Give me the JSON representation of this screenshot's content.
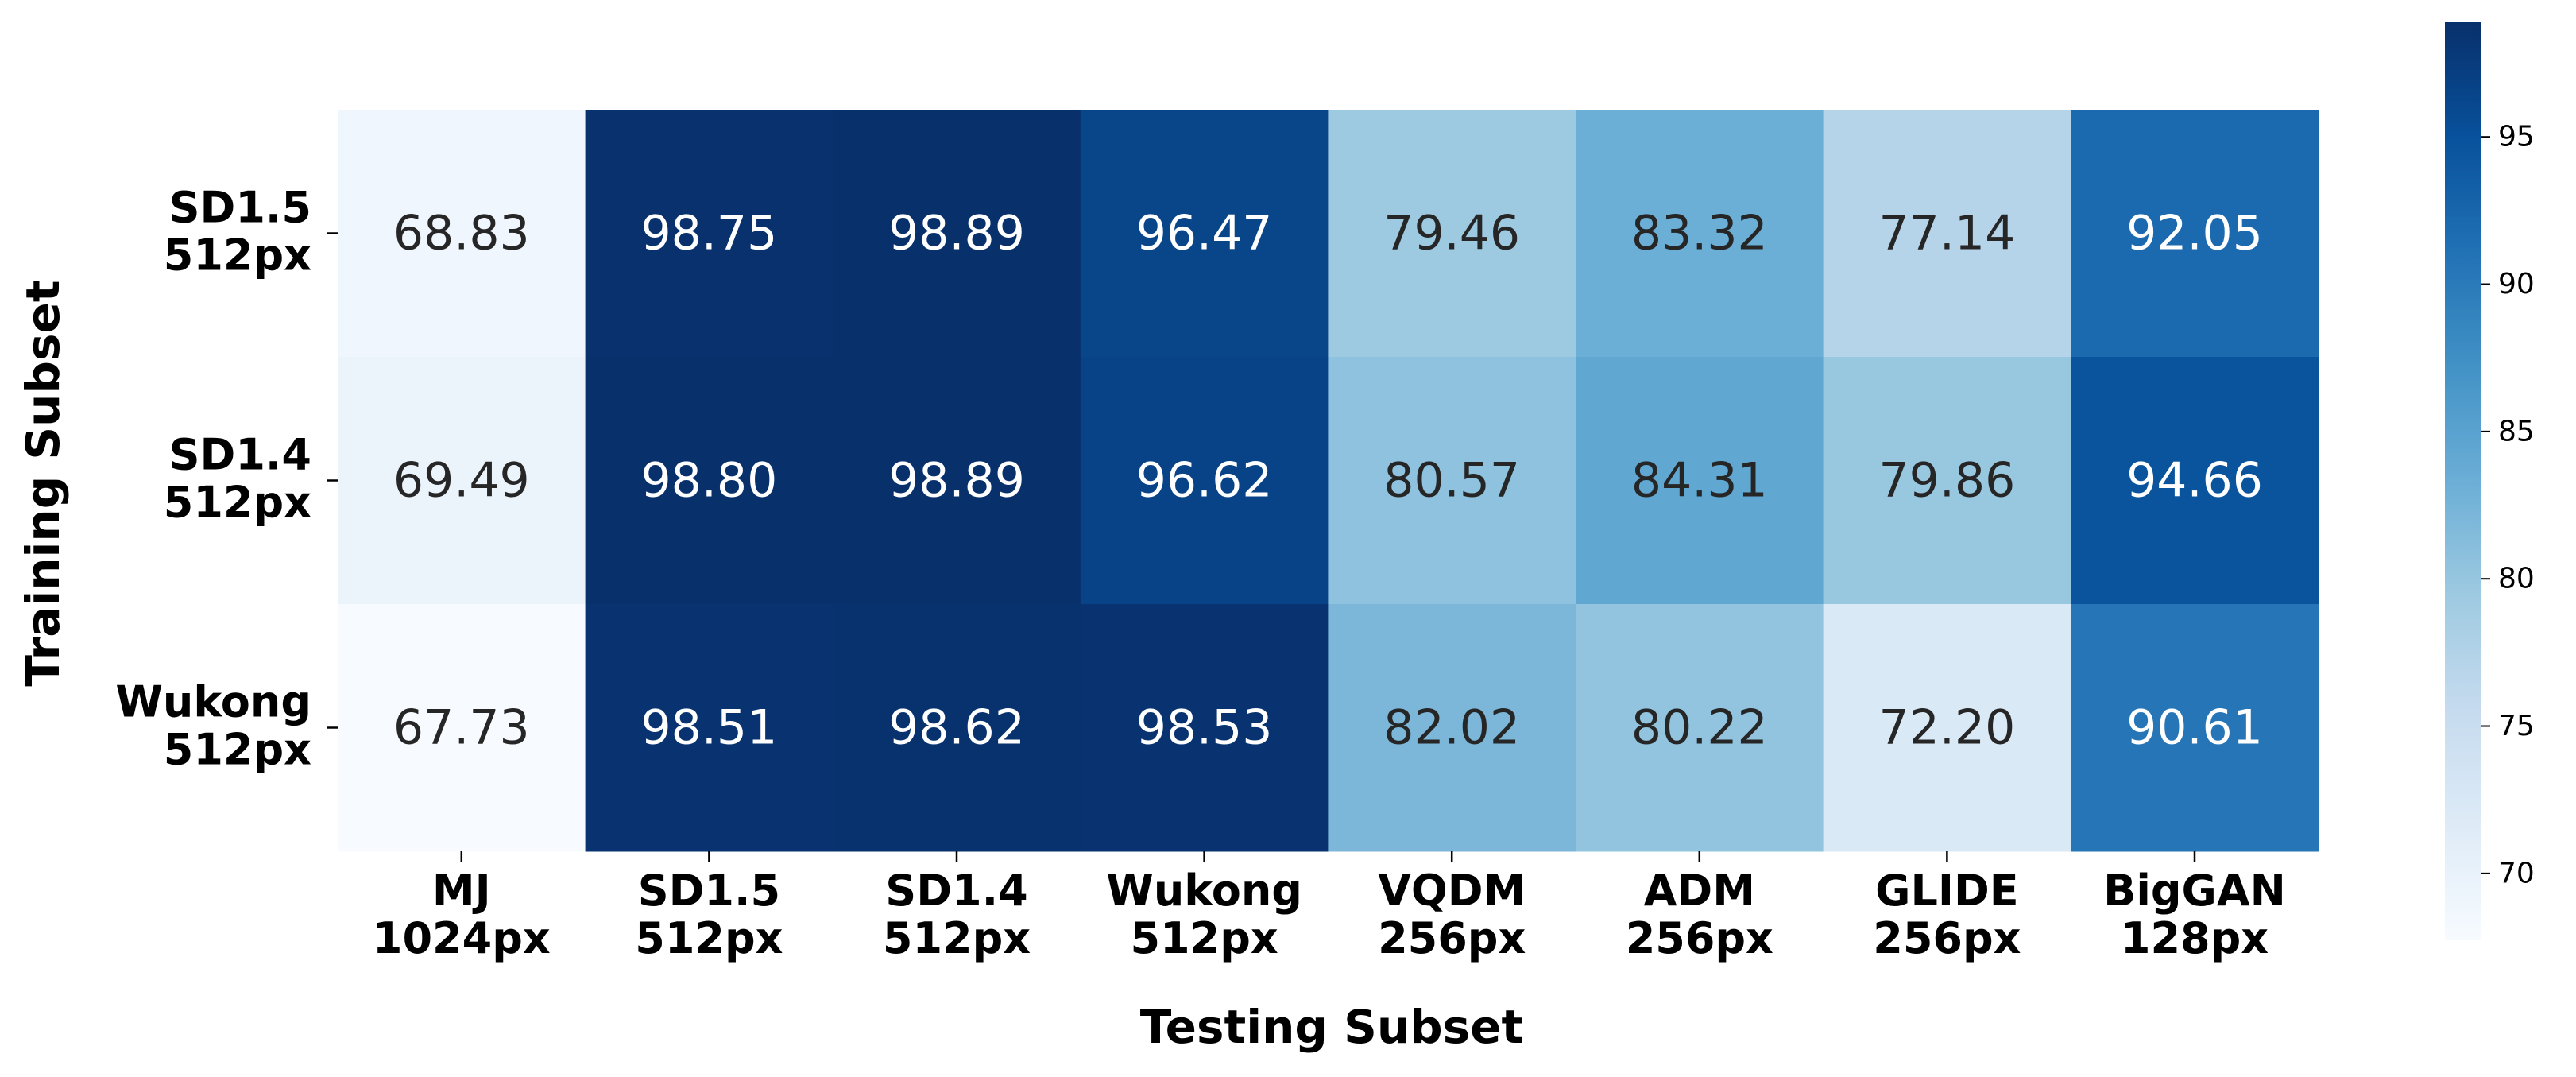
{
  "chart_data": {
    "type": "heatmap",
    "title": "",
    "xlabel": "Testing Subset",
    "ylabel": "Training Subset",
    "x_categories": [
      [
        "MJ",
        "1024px"
      ],
      [
        "SD1.5",
        "512px"
      ],
      [
        "SD1.4",
        "512px"
      ],
      [
        "Wukong",
        "512px"
      ],
      [
        "VQDM",
        "256px"
      ],
      [
        "ADM",
        "256px"
      ],
      [
        "GLIDE",
        "256px"
      ],
      [
        "BigGAN",
        "128px"
      ]
    ],
    "y_categories": [
      [
        "SD1.5",
        "512px"
      ],
      [
        "SD1.4",
        "512px"
      ],
      [
        "Wukong",
        "512px"
      ]
    ],
    "values": [
      [
        68.83,
        98.75,
        98.89,
        96.47,
        79.46,
        83.32,
        77.14,
        92.05
      ],
      [
        69.49,
        98.8,
        98.89,
        96.62,
        80.57,
        84.31,
        79.86,
        94.66
      ],
      [
        67.73,
        98.51,
        98.62,
        98.53,
        82.02,
        80.22,
        72.2,
        90.61
      ]
    ],
    "value_format": "2 decimals",
    "colormap": "Blues",
    "colorbar": {
      "range": [
        67.73,
        98.89
      ],
      "ticks": [
        70,
        75,
        80,
        85,
        90,
        95
      ],
      "placement": "right"
    },
    "grid": false
  }
}
